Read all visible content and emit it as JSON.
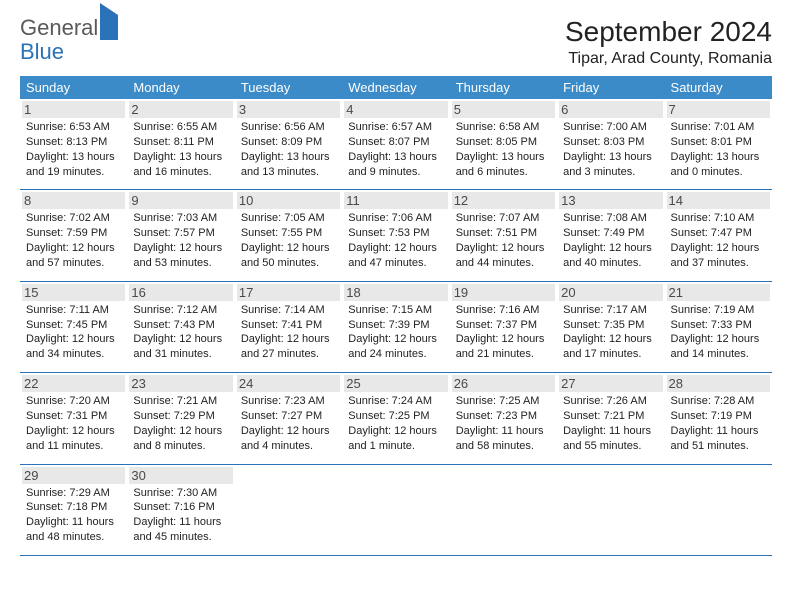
{
  "brand": {
    "part1": "General",
    "part2": "Blue"
  },
  "header": {
    "month_title": "September 2024",
    "location": "Tipar, Arad County, Romania"
  },
  "colors": {
    "header_bg": "#3b8bc8",
    "border": "#2a73b8",
    "shade": "#e8e8e8",
    "text": "#222222"
  },
  "weekdays": [
    "Sunday",
    "Monday",
    "Tuesday",
    "Wednesday",
    "Thursday",
    "Friday",
    "Saturday"
  ],
  "weeks": [
    [
      {
        "n": "1",
        "sr": "6:53 AM",
        "ss": "8:13 PM",
        "dl": "13 hours and 19 minutes."
      },
      {
        "n": "2",
        "sr": "6:55 AM",
        "ss": "8:11 PM",
        "dl": "13 hours and 16 minutes."
      },
      {
        "n": "3",
        "sr": "6:56 AM",
        "ss": "8:09 PM",
        "dl": "13 hours and 13 minutes."
      },
      {
        "n": "4",
        "sr": "6:57 AM",
        "ss": "8:07 PM",
        "dl": "13 hours and 9 minutes."
      },
      {
        "n": "5",
        "sr": "6:58 AM",
        "ss": "8:05 PM",
        "dl": "13 hours and 6 minutes."
      },
      {
        "n": "6",
        "sr": "7:00 AM",
        "ss": "8:03 PM",
        "dl": "13 hours and 3 minutes."
      },
      {
        "n": "7",
        "sr": "7:01 AM",
        "ss": "8:01 PM",
        "dl": "13 hours and 0 minutes."
      }
    ],
    [
      {
        "n": "8",
        "sr": "7:02 AM",
        "ss": "7:59 PM",
        "dl": "12 hours and 57 minutes."
      },
      {
        "n": "9",
        "sr": "7:03 AM",
        "ss": "7:57 PM",
        "dl": "12 hours and 53 minutes."
      },
      {
        "n": "10",
        "sr": "7:05 AM",
        "ss": "7:55 PM",
        "dl": "12 hours and 50 minutes."
      },
      {
        "n": "11",
        "sr": "7:06 AM",
        "ss": "7:53 PM",
        "dl": "12 hours and 47 minutes."
      },
      {
        "n": "12",
        "sr": "7:07 AM",
        "ss": "7:51 PM",
        "dl": "12 hours and 44 minutes."
      },
      {
        "n": "13",
        "sr": "7:08 AM",
        "ss": "7:49 PM",
        "dl": "12 hours and 40 minutes."
      },
      {
        "n": "14",
        "sr": "7:10 AM",
        "ss": "7:47 PM",
        "dl": "12 hours and 37 minutes."
      }
    ],
    [
      {
        "n": "15",
        "sr": "7:11 AM",
        "ss": "7:45 PM",
        "dl": "12 hours and 34 minutes."
      },
      {
        "n": "16",
        "sr": "7:12 AM",
        "ss": "7:43 PM",
        "dl": "12 hours and 31 minutes."
      },
      {
        "n": "17",
        "sr": "7:14 AM",
        "ss": "7:41 PM",
        "dl": "12 hours and 27 minutes."
      },
      {
        "n": "18",
        "sr": "7:15 AM",
        "ss": "7:39 PM",
        "dl": "12 hours and 24 minutes."
      },
      {
        "n": "19",
        "sr": "7:16 AM",
        "ss": "7:37 PM",
        "dl": "12 hours and 21 minutes."
      },
      {
        "n": "20",
        "sr": "7:17 AM",
        "ss": "7:35 PM",
        "dl": "12 hours and 17 minutes."
      },
      {
        "n": "21",
        "sr": "7:19 AM",
        "ss": "7:33 PM",
        "dl": "12 hours and 14 minutes."
      }
    ],
    [
      {
        "n": "22",
        "sr": "7:20 AM",
        "ss": "7:31 PM",
        "dl": "12 hours and 11 minutes."
      },
      {
        "n": "23",
        "sr": "7:21 AM",
        "ss": "7:29 PM",
        "dl": "12 hours and 8 minutes."
      },
      {
        "n": "24",
        "sr": "7:23 AM",
        "ss": "7:27 PM",
        "dl": "12 hours and 4 minutes."
      },
      {
        "n": "25",
        "sr": "7:24 AM",
        "ss": "7:25 PM",
        "dl": "12 hours and 1 minute."
      },
      {
        "n": "26",
        "sr": "7:25 AM",
        "ss": "7:23 PM",
        "dl": "11 hours and 58 minutes."
      },
      {
        "n": "27",
        "sr": "7:26 AM",
        "ss": "7:21 PM",
        "dl": "11 hours and 55 minutes."
      },
      {
        "n": "28",
        "sr": "7:28 AM",
        "ss": "7:19 PM",
        "dl": "11 hours and 51 minutes."
      }
    ],
    [
      {
        "n": "29",
        "sr": "7:29 AM",
        "ss": "7:18 PM",
        "dl": "11 hours and 48 minutes."
      },
      {
        "n": "30",
        "sr": "7:30 AM",
        "ss": "7:16 PM",
        "dl": "11 hours and 45 minutes."
      },
      null,
      null,
      null,
      null,
      null
    ]
  ],
  "labels": {
    "sunrise": "Sunrise: ",
    "sunset": "Sunset: ",
    "daylight": "Daylight: "
  }
}
